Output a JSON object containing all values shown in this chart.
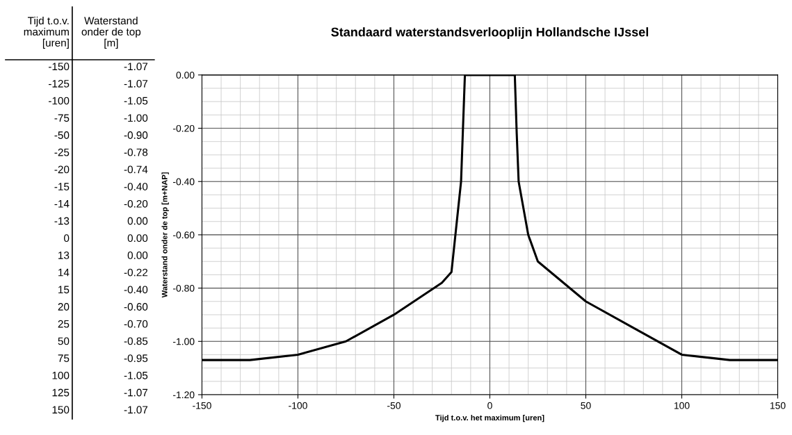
{
  "chart_data": [
    {
      "type": "other",
      "annotations": [
        "Tijd t.o.v.\nmaximum\n[uren]",
        "Waterstand\nonder de top\n[m]",
        "-150",
        "-1.07",
        "-125",
        "-1.07",
        "-100",
        "-1.05",
        "-75",
        "-1.00",
        "-50",
        "-0.90",
        "-25",
        "-0.78",
        "-20",
        "-0.74",
        "-15",
        "-0.40",
        "-14",
        "-0.20",
        "-13",
        "0.00",
        "0",
        "0.00",
        "13",
        "0.00",
        "14",
        "-0.22",
        "15",
        "-0.40",
        "20",
        "-0.60",
        "25",
        "-0.70",
        "50",
        "-0.85",
        "75",
        "-0.95",
        "100",
        "-1.05",
        "125",
        "-1.07",
        "150",
        "-1.07"
      ]
    },
    {
      "type": "line",
      "title": "Standaard waterstandsverlooplijn Hollandsche IJssel",
      "xlabel": "Tijd t.o.v. het maximum [uren]",
      "ylabel": "Waterstand onder de top [m+NAP]",
      "x": [
        -150,
        -125,
        -100,
        -75,
        -50,
        -25,
        -20,
        -15,
        -14,
        -13,
        0,
        13,
        14,
        15,
        20,
        25,
        50,
        75,
        100,
        125,
        150
      ],
      "series": [
        {
          "color": "#000000",
          "values": [
            -1.07,
            -1.07,
            -1.05,
            -1.0,
            -0.9,
            -0.78,
            -0.74,
            -0.4,
            -0.2,
            0.0,
            0.0,
            0.0,
            -0.22,
            -0.4,
            -0.6,
            -0.7,
            -0.85,
            -0.95,
            -1.05,
            -1.07,
            -1.07
          ]
        }
      ],
      "xlim": [
        -150,
        150
      ],
      "xticks": [
        -150,
        -100,
        -50,
        0,
        50,
        100,
        150
      ],
      "ylim": [
        -1.2,
        0
      ],
      "yticks": [
        {
          "value": -1.2,
          "label": "-1.20"
        },
        {
          "value": -1.0,
          "label": "-1.00"
        },
        {
          "value": -0.8,
          "label": "-0.80"
        },
        {
          "value": -0.6,
          "label": "-0.60"
        },
        {
          "value": -0.4,
          "label": "-0.40"
        },
        {
          "value": -0.2,
          "label": "-0.20"
        },
        {
          "value": 0,
          "label": "0.00"
        }
      ],
      "grid": true,
      "marker": "none",
      "line_style": "solid"
    }
  ]
}
